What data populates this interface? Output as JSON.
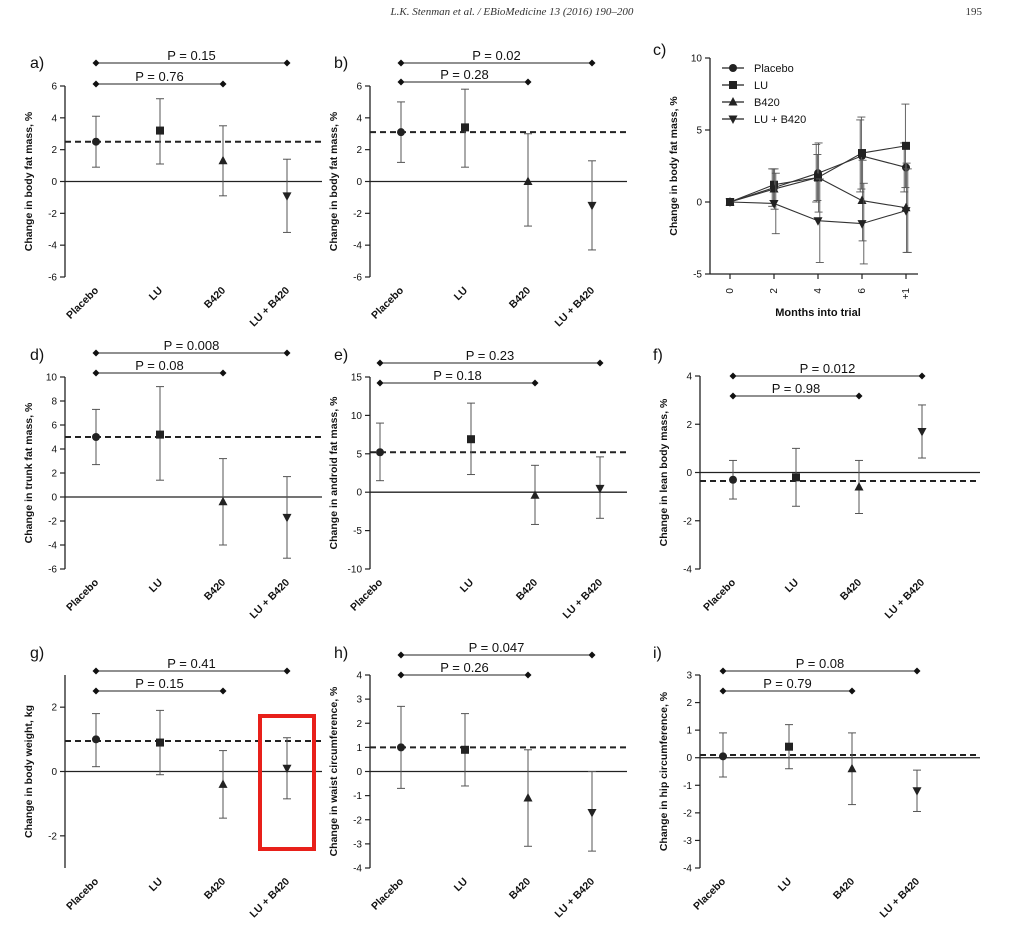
{
  "header": {
    "citation": "L.K. Stenman et al. / EBioMedicine 13 (2016) 190–200",
    "page_number": "195"
  },
  "highlight": {
    "color": "#e8201a",
    "panel": "g",
    "category": "LU + B420"
  },
  "chart_data": [
    {
      "panel": "a)",
      "type": "scatter",
      "ylabel": "Change in body fat mass, %",
      "categories": [
        "Placebo",
        "LU",
        "B420",
        "LU + B420"
      ],
      "markers": [
        "circle",
        "square",
        "triangle-up",
        "triangle-down"
      ],
      "values": [
        2.5,
        3.2,
        1.3,
        -0.9
      ],
      "err_low": [
        0.9,
        1.1,
        -0.9,
        -3.2
      ],
      "err_high": [
        4.1,
        5.2,
        3.5,
        1.4
      ],
      "ylim": [
        -6,
        6
      ],
      "yticks": [
        -6,
        -4,
        -2,
        0,
        2,
        4,
        6
      ],
      "placebo_line": 2.5,
      "pvalues": [
        {
          "label": "P = 0.76",
          "to": "B420"
        },
        {
          "label": "P = 0.15",
          "to": "LU + B420"
        }
      ]
    },
    {
      "panel": "b)",
      "type": "scatter",
      "ylabel": "Change in body fat mass, %",
      "categories": [
        "Placebo",
        "LU",
        "B420",
        "LU + B420"
      ],
      "markers": [
        "circle",
        "square",
        "triangle-up",
        "triangle-down"
      ],
      "values": [
        3.1,
        3.4,
        0.0,
        -1.5
      ],
      "err_low": [
        1.2,
        0.9,
        -2.8,
        -4.3
      ],
      "err_high": [
        5.0,
        5.8,
        3.0,
        1.3
      ],
      "ylim": [
        -6,
        6
      ],
      "yticks": [
        -6,
        -4,
        -2,
        0,
        2,
        4,
        6
      ],
      "placebo_line": 3.1,
      "pvalues": [
        {
          "label": "P = 0.28",
          "to": "B420"
        },
        {
          "label": "P = 0.02",
          "to": "LU + B420"
        }
      ]
    },
    {
      "panel": "c)",
      "type": "line",
      "ylabel": "Change in body fat mass, %",
      "xlabel": "Months into trial",
      "x": [
        0,
        2,
        4,
        6,
        "+1"
      ],
      "xticks": [
        "0",
        "2",
        "4",
        "6",
        "+1"
      ],
      "ylim": [
        -5,
        10
      ],
      "yticks": [
        -5,
        0,
        5,
        10
      ],
      "series": [
        {
          "name": "Placebo",
          "marker": "circle",
          "values": [
            0,
            1.0,
            2.0,
            3.2,
            2.4
          ],
          "err": [
            0,
            1.3,
            2.0,
            2.5,
            1.7
          ]
        },
        {
          "name": "LU",
          "marker": "square",
          "values": [
            0,
            1.2,
            1.7,
            3.4,
            3.9
          ],
          "err": [
            0,
            1.1,
            1.6,
            2.5,
            2.9
          ]
        },
        {
          "name": "B420",
          "marker": "triangle-up",
          "values": [
            0,
            0.9,
            1.7,
            0.1,
            -0.4
          ],
          "err": [
            0,
            1.4,
            2.4,
            2.8,
            3.1
          ]
        },
        {
          "name": "LU + B420",
          "marker": "triangle-down",
          "values": [
            0,
            -0.1,
            -1.3,
            -1.5,
            -0.6
          ],
          "err": [
            0,
            2.1,
            2.9,
            2.8,
            2.9
          ]
        }
      ]
    },
    {
      "panel": "d)",
      "type": "scatter",
      "ylabel": "Change in trunk fat mass, %",
      "categories": [
        "Placebo",
        "LU",
        "B420",
        "LU + B420"
      ],
      "markers": [
        "circle",
        "square",
        "triangle-up",
        "triangle-down"
      ],
      "values": [
        5.0,
        5.2,
        -0.4,
        -1.7
      ],
      "err_low": [
        2.7,
        1.4,
        -4.0,
        -5.1
      ],
      "err_high": [
        7.3,
        9.2,
        3.2,
        1.7
      ],
      "ylim": [
        -6,
        10
      ],
      "yticks": [
        -6,
        -4,
        -2,
        0,
        2,
        4,
        6,
        8,
        10
      ],
      "placebo_line": 5.0,
      "pvalues": [
        {
          "label": "P = 0.08",
          "to": "B420"
        },
        {
          "label": "P = 0.008",
          "to": "LU + B420"
        }
      ]
    },
    {
      "panel": "e)",
      "type": "scatter",
      "ylabel": "Change in android fat mass, %",
      "categories": [
        "Placebo",
        "LU",
        "B420",
        "LU + B420"
      ],
      "markers": [
        "circle",
        "square",
        "triangle-up",
        "triangle-down"
      ],
      "values": [
        5.2,
        6.9,
        -0.4,
        0.5
      ],
      "err_low": [
        1.5,
        2.3,
        -4.2,
        -3.4
      ],
      "err_high": [
        9.0,
        11.6,
        3.5,
        4.6
      ],
      "ylim": [
        -10,
        15
      ],
      "yticks": [
        -10,
        -5,
        0,
        5,
        10,
        15
      ],
      "placebo_line": 5.2,
      "pvalues": [
        {
          "label": "P = 0.18",
          "to": "B420"
        },
        {
          "label": "P = 0.23",
          "to": "LU + B420"
        }
      ]
    },
    {
      "panel": "f)",
      "type": "scatter",
      "ylabel": "Change in lean body mass, %",
      "categories": [
        "Placebo",
        "LU",
        "B420",
        "LU + B420"
      ],
      "markers": [
        "circle",
        "square",
        "triangle-up",
        "triangle-down"
      ],
      "values": [
        -0.3,
        -0.2,
        -0.6,
        1.7
      ],
      "err_low": [
        -1.1,
        -1.4,
        -1.7,
        0.6
      ],
      "err_high": [
        0.5,
        1.0,
        0.5,
        2.8
      ],
      "ylim": [
        -4,
        4
      ],
      "yticks": [
        -4,
        -2,
        0,
        2,
        4
      ],
      "placebo_line": -0.35,
      "pvalues": [
        {
          "label": "P = 0.98",
          "to": "B420"
        },
        {
          "label": "P = 0.012",
          "to": "LU + B420"
        }
      ]
    },
    {
      "panel": "g)",
      "type": "scatter",
      "ylabel": "Change in body weight, kg",
      "categories": [
        "Placebo",
        "LU",
        "B420",
        "LU + B420"
      ],
      "markers": [
        "circle",
        "square",
        "triangle-up",
        "triangle-down"
      ],
      "values": [
        1.0,
        0.9,
        -0.4,
        0.1
      ],
      "err_low": [
        0.15,
        -0.1,
        -1.45,
        -0.85
      ],
      "err_high": [
        1.8,
        1.9,
        0.65,
        1.05
      ],
      "ylim": [
        -3,
        3
      ],
      "yticks": [
        -2,
        0,
        2
      ],
      "placebo_line": 0.95,
      "pvalues": [
        {
          "label": "P = 0.15",
          "to": "B420"
        },
        {
          "label": "P = 0.41",
          "to": "LU + B420"
        }
      ]
    },
    {
      "panel": "h)",
      "type": "scatter",
      "ylabel": "Change in waist circumference, %",
      "categories": [
        "Placebo",
        "LU",
        "B420",
        "LU + B420"
      ],
      "markers": [
        "circle",
        "square",
        "triangle-up",
        "triangle-down"
      ],
      "values": [
        1.0,
        0.9,
        -1.1,
        -1.7
      ],
      "err_low": [
        -0.7,
        -0.6,
        -3.1,
        -3.3
      ],
      "err_high": [
        2.7,
        2.4,
        0.9,
        0.0
      ],
      "ylim": [
        -4,
        4
      ],
      "yticks": [
        -4,
        -3,
        -2,
        -1,
        0,
        1,
        2,
        3,
        4
      ],
      "placebo_line": 1.0,
      "pvalues": [
        {
          "label": "P = 0.26",
          "to": "B420"
        },
        {
          "label": "P = 0.047",
          "to": "LU + B420"
        }
      ]
    },
    {
      "panel": "i)",
      "type": "scatter",
      "ylabel": "Change in hip circumference, %",
      "categories": [
        "Placebo",
        "LU",
        "B420",
        "LU + B420"
      ],
      "markers": [
        "circle",
        "square",
        "triangle-up",
        "triangle-down"
      ],
      "values": [
        0.05,
        0.4,
        -0.4,
        -1.2
      ],
      "err_low": [
        -0.7,
        -0.4,
        -1.7,
        -1.95
      ],
      "err_high": [
        0.9,
        1.2,
        0.9,
        -0.45
      ],
      "ylim": [
        -4,
        3
      ],
      "yticks": [
        -4,
        -3,
        -2,
        -1,
        0,
        1,
        2,
        3
      ],
      "placebo_line": 0.1,
      "pvalues": [
        {
          "label": "P = 0.79",
          "to": "B420"
        },
        {
          "label": "P = 0.08",
          "to": "LU + B420"
        }
      ]
    }
  ]
}
